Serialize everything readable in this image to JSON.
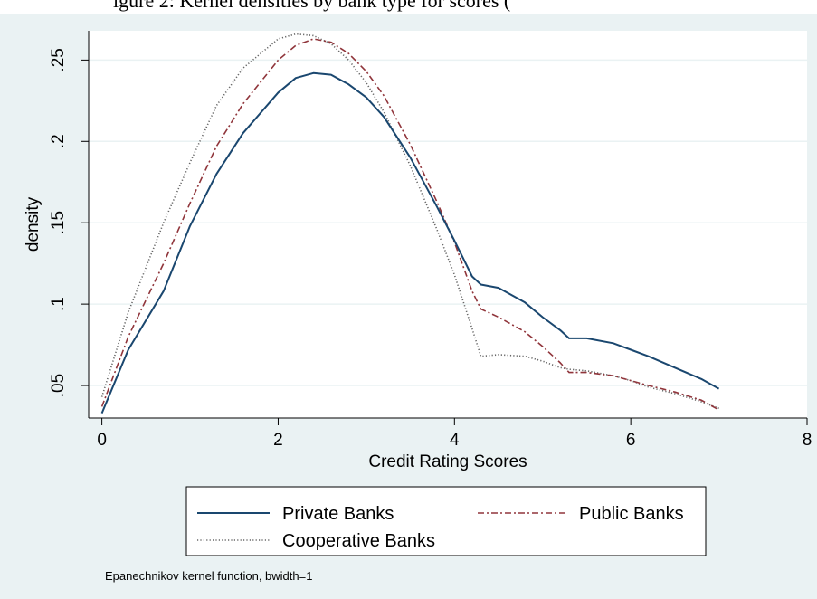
{
  "caption_fragment": "igure 2: Kernel densities by bank type for scores (",
  "chart_data": {
    "type": "line",
    "title": "",
    "xlabel": "Credit Rating Scores",
    "ylabel": "density",
    "xlim": [
      -0.15,
      8.0
    ],
    "ylim": [
      0.03,
      0.268
    ],
    "x_ticks": [
      0,
      2,
      4,
      6,
      8
    ],
    "x_tick_labels": [
      "0",
      "2",
      "4",
      "6",
      "8"
    ],
    "y_ticks": [
      0.05,
      0.1,
      0.15,
      0.2,
      0.25
    ],
    "y_tick_labels": [
      ".05",
      ".1",
      ".15",
      ".2",
      ".25"
    ],
    "grid": "horizontal",
    "legend_position": "bottom",
    "note": "Epanechnikov kernel function, bwidth=1",
    "series": [
      {
        "name": "Private Banks",
        "color": "#1a476f",
        "style": "solid",
        "x": [
          0,
          0.3,
          0.7,
          1.0,
          1.3,
          1.6,
          2.0,
          2.2,
          2.4,
          2.6,
          2.8,
          3.0,
          3.2,
          3.5,
          3.8,
          4.0,
          4.2,
          4.3,
          4.5,
          4.8,
          5.0,
          5.2,
          5.3,
          5.5,
          5.8,
          6.0,
          6.2,
          6.5,
          6.8,
          7.0
        ],
        "y": [
          0.033,
          0.072,
          0.108,
          0.148,
          0.18,
          0.205,
          0.23,
          0.239,
          0.242,
          0.241,
          0.235,
          0.227,
          0.215,
          0.19,
          0.16,
          0.139,
          0.117,
          0.112,
          0.11,
          0.101,
          0.092,
          0.084,
          0.079,
          0.079,
          0.076,
          0.072,
          0.068,
          0.061,
          0.054,
          0.048
        ]
      },
      {
        "name": "Public Banks",
        "color": "#90353b",
        "style": "dash-dot",
        "x": [
          0,
          0.3,
          0.7,
          1.0,
          1.3,
          1.6,
          2.0,
          2.2,
          2.4,
          2.6,
          2.8,
          3.0,
          3.2,
          3.5,
          3.8,
          4.0,
          4.2,
          4.3,
          4.5,
          4.8,
          5.0,
          5.2,
          5.3,
          5.5,
          5.8,
          6.0,
          6.2,
          6.5,
          6.8,
          7.0
        ],
        "y": [
          0.037,
          0.08,
          0.125,
          0.162,
          0.197,
          0.223,
          0.25,
          0.259,
          0.263,
          0.261,
          0.254,
          0.243,
          0.228,
          0.198,
          0.163,
          0.138,
          0.108,
          0.097,
          0.092,
          0.083,
          0.074,
          0.064,
          0.058,
          0.058,
          0.056,
          0.053,
          0.05,
          0.046,
          0.041,
          0.035
        ]
      },
      {
        "name": "Cooperative Banks",
        "color": "#666666",
        "style": "dotted",
        "x": [
          0,
          0.3,
          0.7,
          1.0,
          1.3,
          1.6,
          2.0,
          2.2,
          2.4,
          2.6,
          2.8,
          3.0,
          3.2,
          3.5,
          3.8,
          4.0,
          4.2,
          4.3,
          4.5,
          4.8,
          5.0,
          5.2,
          5.3,
          5.5,
          5.8,
          6.0,
          6.2,
          6.5,
          6.8,
          7.0
        ],
        "y": [
          0.043,
          0.095,
          0.15,
          0.187,
          0.222,
          0.245,
          0.263,
          0.266,
          0.265,
          0.26,
          0.25,
          0.236,
          0.218,
          0.185,
          0.146,
          0.118,
          0.085,
          0.068,
          0.069,
          0.068,
          0.065,
          0.061,
          0.06,
          0.059,
          0.056,
          0.053,
          0.049,
          0.045,
          0.04,
          0.036
        ]
      }
    ]
  }
}
